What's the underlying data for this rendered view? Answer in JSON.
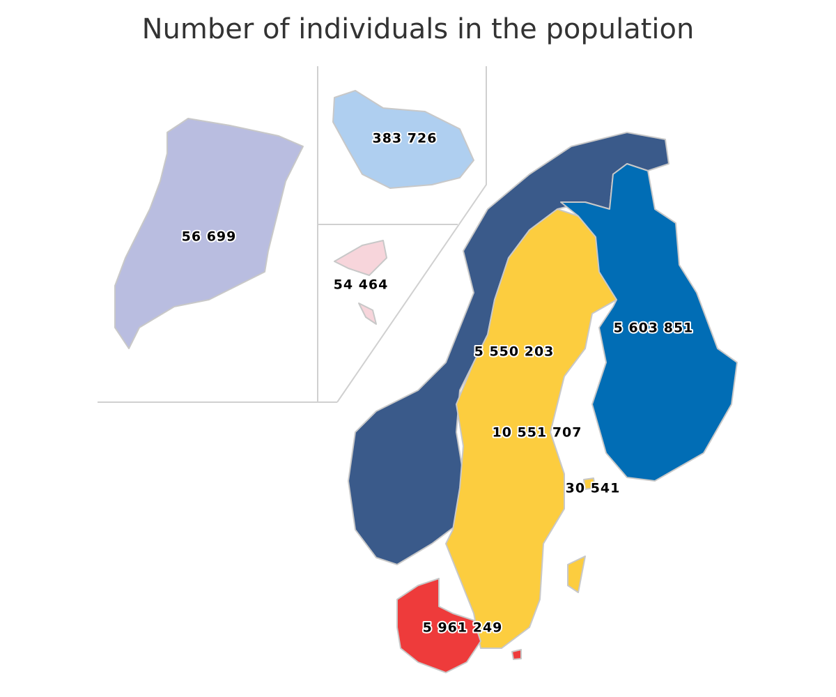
{
  "title": "Number of individuals in the population",
  "regions": [
    {
      "label": "56 699",
      "color": "#b9bde0"
    },
    {
      "label": "383 726",
      "color": "#afcff0"
    },
    {
      "label": "54 464",
      "color": "#f7d5db"
    },
    {
      "label": "5 603 851",
      "color": "#016db5"
    },
    {
      "label": "5 550 203",
      "color": "#3a5a8a"
    },
    {
      "label": "10 551 707",
      "color": "#fccd3f"
    },
    {
      "label": "30 541",
      "color": "#fccd3f"
    },
    {
      "label": "5 961 249",
      "color": "#ee3b3b"
    }
  ]
}
